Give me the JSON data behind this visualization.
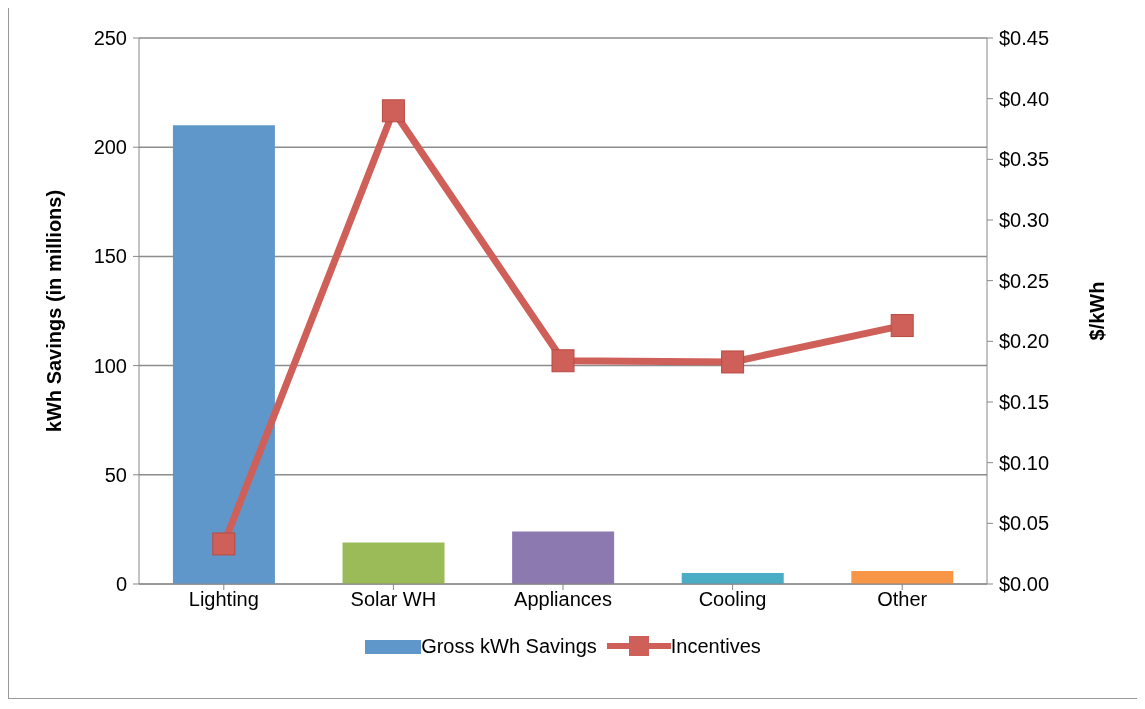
{
  "chart_data": {
    "type": "bar",
    "ylabel": "kWh Savings (in millions)",
    "y2label": "$/kWh",
    "categories": [
      "Lighting",
      "Solar WH",
      "Appliances",
      "Cooling",
      "Other"
    ],
    "series": [
      {
        "name": "Gross kWh Savings",
        "colors": [
          "#6097cb",
          "#9bbb59",
          "#8c79b0",
          "#4bacc6",
          "#f79646"
        ],
        "values": [
          210,
          19,
          24,
          5,
          6
        ]
      },
      {
        "name": "Incentives",
        "type": "line",
        "axis": "y2",
        "color": "#cf5f59",
        "marker": "square",
        "values": [
          0.033,
          0.39,
          0.184,
          0.183,
          0.213
        ]
      }
    ],
    "ylim": [
      0,
      250
    ],
    "yticks": [
      0,
      50,
      100,
      150,
      200,
      250
    ],
    "y2lim": [
      0,
      0.45
    ],
    "y2ticks": [
      {
        "value": 0,
        "label": "$0.00"
      },
      {
        "value": 0.05,
        "label": "$0.05"
      },
      {
        "value": 0.1,
        "label": "$0.10"
      },
      {
        "value": 0.15,
        "label": "$0.15"
      },
      {
        "value": 0.2,
        "label": "$0.20"
      },
      {
        "value": 0.25,
        "label": "$0.25"
      },
      {
        "value": 0.3,
        "label": "$0.30"
      },
      {
        "value": 0.35,
        "label": "$0.35"
      },
      {
        "value": 0.4,
        "label": "$0.40"
      },
      {
        "value": 0.45,
        "label": "$0.45"
      }
    ],
    "grid": "y",
    "legend": "bottom"
  }
}
